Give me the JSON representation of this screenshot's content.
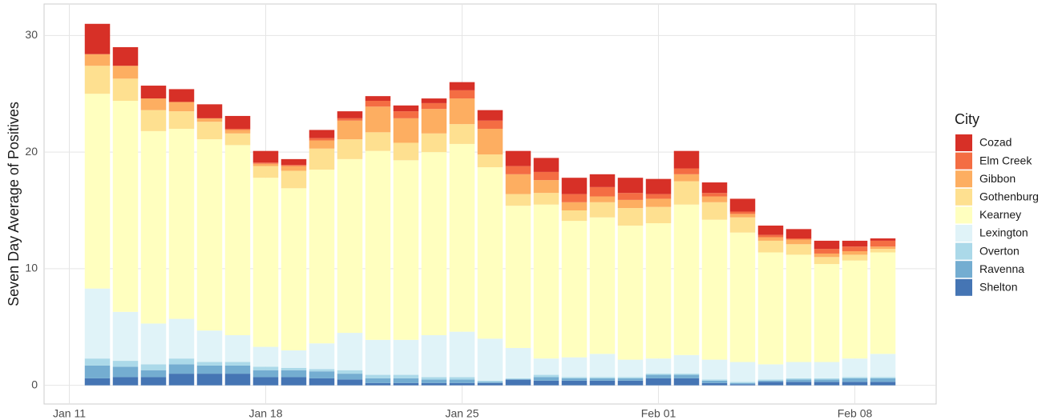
{
  "chart_data": {
    "type": "stacked-bar",
    "y_label": "Seven Day Average of Positives",
    "legend_title": "City",
    "legend": "right",
    "grid": true,
    "ylim": [
      -1.6,
      32.7
    ],
    "yticks": [
      0,
      10,
      20,
      30
    ],
    "xticks": [
      "Jan 11",
      "Jan 18",
      "Jan 25",
      "Feb 01",
      "Feb 08"
    ],
    "x": [
      "Jan 12",
      "Jan 13",
      "Jan 14",
      "Jan 15",
      "Jan 16",
      "Jan 17",
      "Jan 18",
      "Jan 19",
      "Jan 20",
      "Jan 21",
      "Jan 22",
      "Jan 23",
      "Jan 24",
      "Jan 25",
      "Jan 26",
      "Jan 27",
      "Jan 28",
      "Jan 29",
      "Jan 30",
      "Jan 31",
      "Feb 01",
      "Feb 02",
      "Feb 03",
      "Feb 04",
      "Feb 05",
      "Feb 06",
      "Feb 07",
      "Feb 08",
      "Feb 09"
    ],
    "series": [
      {
        "name": "Cozad",
        "color": "#d73027",
        "values": [
          2.6,
          1.6,
          1.1,
          1.1,
          1.2,
          1.1,
          1.0,
          0.5,
          0.7,
          0.6,
          0.4,
          0.5,
          0.4,
          0.7,
          0.9,
          1.3,
          1.2,
          1.4,
          1.1,
          1.3,
          1.3,
          1.5,
          0.9,
          1.1,
          0.8,
          0.8,
          0.7,
          0.5,
          0.2
        ]
      },
      {
        "name": "Elm Creek",
        "color": "#f46d43",
        "values": [
          0,
          0,
          0,
          0,
          0,
          0.1,
          0.1,
          0.1,
          0.2,
          0.2,
          0.5,
          0.6,
          0.5,
          0.7,
          0.7,
          0.7,
          0.7,
          0.7,
          0.8,
          0.6,
          0.4,
          0.5,
          0.3,
          0.2,
          0.2,
          0.1,
          0.4,
          0.4,
          0.5
        ]
      },
      {
        "name": "Gibbon",
        "color": "#fdae61",
        "values": [
          1.0,
          1.1,
          1.0,
          0.8,
          0.3,
          0.3,
          0.2,
          0.4,
          0.7,
          1.6,
          2.2,
          2.1,
          2.1,
          2.2,
          2.2,
          1.7,
          1.1,
          0.7,
          0.5,
          0.7,
          0.7,
          0.6,
          0.5,
          0.3,
          0.3,
          0.4,
          0.3,
          0.3,
          0.2
        ]
      },
      {
        "name": "Gothenburg",
        "color": "#fee090",
        "values": [
          2.4,
          1.9,
          1.8,
          1.5,
          1.5,
          1.0,
          1.0,
          1.5,
          1.8,
          1.7,
          1.6,
          1.5,
          1.6,
          1.7,
          1.1,
          1.0,
          1.0,
          0.9,
          1.3,
          1.5,
          1.4,
          2.0,
          1.5,
          1.3,
          1.0,
          0.9,
          0.6,
          0.5,
          0.3
        ]
      },
      {
        "name": "Kearney",
        "color": "#ffffbf",
        "values": [
          16.7,
          18.1,
          16.5,
          16.3,
          16.4,
          16.3,
          14.5,
          13.9,
          14.9,
          14.9,
          16.2,
          15.4,
          15.7,
          16.1,
          14.7,
          12.2,
          13.2,
          11.7,
          11.7,
          11.5,
          11.6,
          12.9,
          12.0,
          11.1,
          9.6,
          9.2,
          8.4,
          8.4,
          8.7
        ]
      },
      {
        "name": "Lexington",
        "color": "#e0f3f8",
        "values": [
          6.0,
          4.2,
          3.5,
          3.4,
          2.7,
          2.3,
          1.7,
          1.5,
          2.2,
          3.2,
          3.0,
          3.0,
          3.6,
          3.9,
          3.6,
          2.6,
          1.4,
          1.7,
          2.0,
          1.5,
          1.3,
          1.6,
          1.7,
          1.7,
          1.3,
          1.4,
          1.4,
          1.6,
          2.0
        ]
      },
      {
        "name": "Overton",
        "color": "#abd9e9",
        "values": [
          0.6,
          0.5,
          0.5,
          0.5,
          0.3,
          0.3,
          0.3,
          0.2,
          0.2,
          0.3,
          0.3,
          0.3,
          0.2,
          0.2,
          0.1,
          0.1,
          0.2,
          0.1,
          0.1,
          0.1,
          0.1,
          0.1,
          0.1,
          0.1,
          0.1,
          0.1,
          0.1,
          0.1,
          0.1
        ]
      },
      {
        "name": "Ravenna",
        "color": "#74add1",
        "values": [
          1.1,
          0.9,
          0.6,
          0.8,
          0.7,
          0.7,
          0.6,
          0.6,
          0.6,
          0.5,
          0.4,
          0.4,
          0.3,
          0.3,
          0.1,
          0,
          0.3,
          0.2,
          0.2,
          0.2,
          0.3,
          0.3,
          0.2,
          0.1,
          0.1,
          0.2,
          0.2,
          0.3,
          0.3
        ]
      },
      {
        "name": "Shelton",
        "color": "#4575b4",
        "values": [
          0.6,
          0.7,
          0.7,
          1.0,
          1.0,
          1.0,
          0.7,
          0.7,
          0.6,
          0.5,
          0.2,
          0.2,
          0.2,
          0.2,
          0.2,
          0.5,
          0.4,
          0.4,
          0.4,
          0.4,
          0.6,
          0.6,
          0.2,
          0.1,
          0.3,
          0.3,
          0.3,
          0.3,
          0.3
        ]
      }
    ]
  }
}
